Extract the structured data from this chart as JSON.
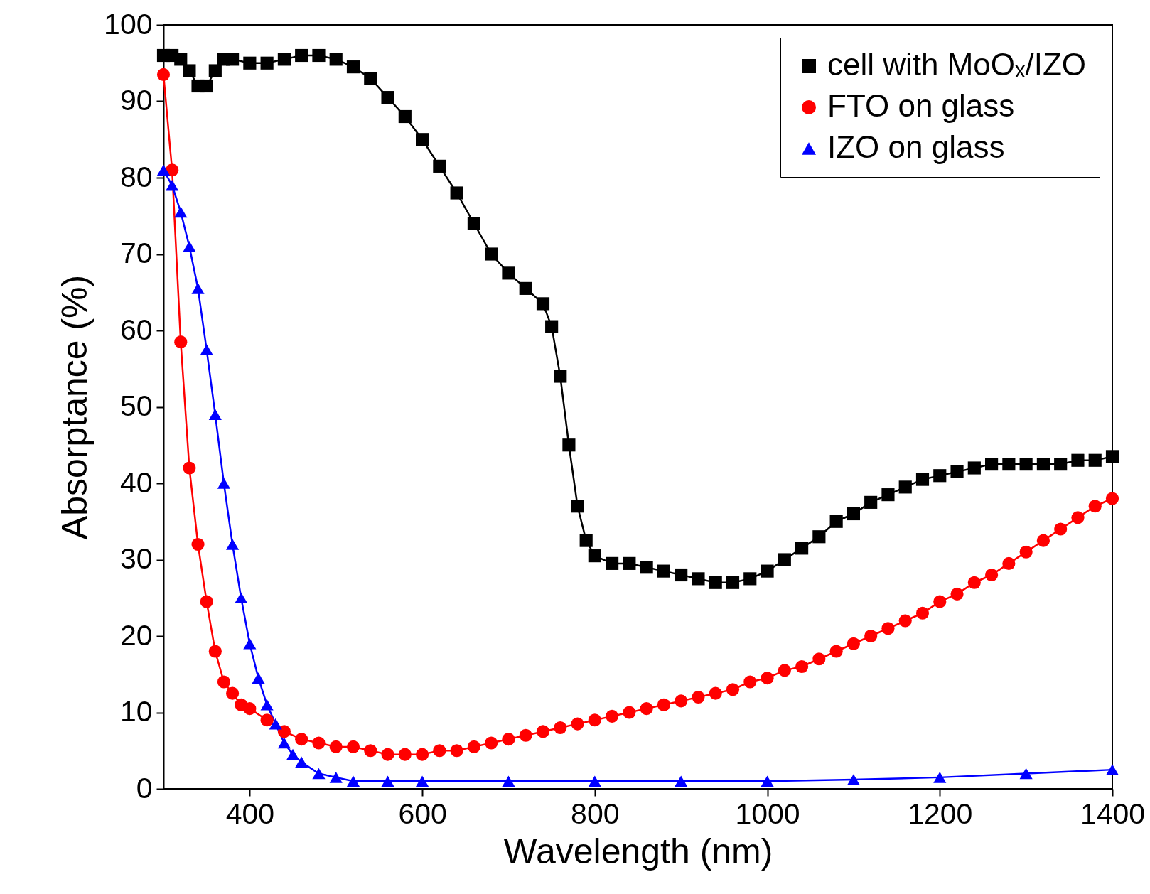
{
  "chart_data": {
    "type": "line",
    "xlabel": "Wavelength (nm)",
    "ylabel": "Absorptance (%)",
    "xlim": [
      300,
      1400
    ],
    "xticks": [
      400,
      600,
      800,
      1000,
      1200,
      1400
    ],
    "ylim": [
      0,
      100
    ],
    "yticks": [
      0,
      10,
      20,
      30,
      40,
      50,
      60,
      70,
      80,
      90,
      100
    ],
    "grid": false,
    "legend": "top right",
    "line_style": "solid",
    "series": [
      {
        "name": "cell with MoOₓ/IZO",
        "color": "#000000",
        "marker": "square",
        "x": [
          300,
          310,
          320,
          330,
          340,
          350,
          360,
          370,
          380,
          400,
          420,
          440,
          460,
          480,
          500,
          520,
          540,
          560,
          580,
          600,
          620,
          640,
          660,
          680,
          700,
          720,
          740,
          750,
          760,
          770,
          780,
          790,
          800,
          820,
          840,
          860,
          880,
          900,
          920,
          940,
          960,
          980,
          1000,
          1020,
          1040,
          1060,
          1080,
          1100,
          1120,
          1140,
          1160,
          1180,
          1200,
          1220,
          1240,
          1260,
          1280,
          1300,
          1320,
          1340,
          1360,
          1380,
          1400
        ],
        "values": [
          96,
          96,
          95.5,
          94,
          92,
          92,
          94,
          95.5,
          95.5,
          95,
          95,
          95.5,
          96,
          96,
          95.5,
          94.5,
          93,
          90.5,
          88,
          85,
          81.5,
          78,
          74,
          70,
          67.5,
          65.5,
          63.5,
          60.5,
          54,
          45,
          37,
          32.5,
          30.5,
          29.5,
          29.5,
          29,
          28.5,
          28,
          27.5,
          27,
          27,
          27.5,
          28.5,
          30,
          31.5,
          33,
          35,
          36,
          37.5,
          38.5,
          39.5,
          40.5,
          41,
          41.5,
          42,
          42.5,
          42.5,
          42.5,
          42.5,
          42.5,
          43,
          43,
          43.5
        ]
      },
      {
        "name": "FTO on glass",
        "color": "#ff0000",
        "marker": "circle",
        "x": [
          300,
          310,
          320,
          330,
          340,
          350,
          360,
          370,
          380,
          390,
          400,
          420,
          440,
          460,
          480,
          500,
          520,
          540,
          560,
          580,
          600,
          620,
          640,
          660,
          680,
          700,
          720,
          740,
          760,
          780,
          800,
          820,
          840,
          860,
          880,
          900,
          920,
          940,
          960,
          980,
          1000,
          1020,
          1040,
          1060,
          1080,
          1100,
          1120,
          1140,
          1160,
          1180,
          1200,
          1220,
          1240,
          1260,
          1280,
          1300,
          1320,
          1340,
          1360,
          1380,
          1400
        ],
        "values": [
          93.5,
          81,
          58.5,
          42,
          32,
          24.5,
          18,
          14,
          12.5,
          11,
          10.5,
          9,
          7.5,
          6.5,
          6,
          5.5,
          5.5,
          5,
          4.5,
          4.5,
          4.5,
          5,
          5,
          5.5,
          6,
          6.5,
          7,
          7.5,
          8,
          8.5,
          9,
          9.5,
          10,
          10.5,
          11,
          11.5,
          12,
          12.5,
          13,
          14,
          14.5,
          15.5,
          16,
          17,
          18,
          19,
          20,
          21,
          22,
          23,
          24.5,
          25.5,
          27,
          28,
          29.5,
          31,
          32.5,
          34,
          35.5,
          37,
          38
        ]
      },
      {
        "name": "IZO on glass",
        "color": "#0000ff",
        "marker": "triangle",
        "x": [
          300,
          310,
          320,
          330,
          340,
          350,
          360,
          370,
          380,
          390,
          400,
          410,
          420,
          430,
          440,
          450,
          460,
          480,
          500,
          520,
          560,
          600,
          700,
          800,
          900,
          1000,
          1100,
          1200,
          1300,
          1400
        ],
        "values": [
          81,
          79,
          75.5,
          71,
          65.5,
          57.5,
          49,
          40,
          32,
          25,
          19,
          14.5,
          11,
          8.5,
          6,
          4.5,
          3.5,
          2,
          1.5,
          1,
          1,
          1,
          1,
          1,
          1,
          1,
          1.2,
          1.5,
          2,
          2.5
        ]
      }
    ]
  }
}
